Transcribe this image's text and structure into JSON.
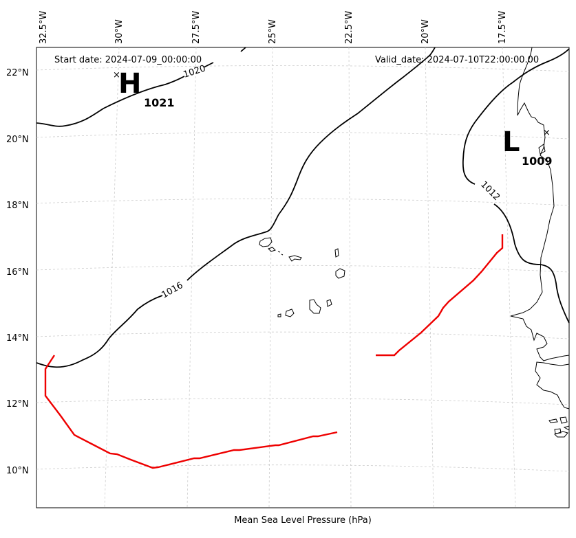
{
  "header": {
    "start_date": "Start date: 2024-07-09_00:00:00",
    "valid_date": "Valid_date: 2024-07-10T22:00:00.00"
  },
  "footer": {
    "title": "Mean Sea Level Pressure (hPa)"
  },
  "axes": {
    "longitude_labels": [
      "32.5°W",
      "30°W",
      "27.5°W",
      "25°W",
      "22.5°W",
      "20°W",
      "17.5°W"
    ],
    "latitude_labels": [
      "22°N",
      "20°N",
      "18°N",
      "16°N",
      "14°N",
      "12°N",
      "10°N"
    ],
    "grid": "dashed, light gray"
  },
  "pressure_centers": [
    {
      "symbol": "H",
      "value": "1021",
      "marker": "×"
    },
    {
      "symbol": "L",
      "value": "1009",
      "marker": "×"
    }
  ],
  "contour_labels": [
    "1020",
    "1016",
    "1012"
  ],
  "colors": {
    "isobar": "#000000",
    "highlight_line": "#ee0000",
    "grid": "#cccccc",
    "land_outline": "#000000"
  }
}
